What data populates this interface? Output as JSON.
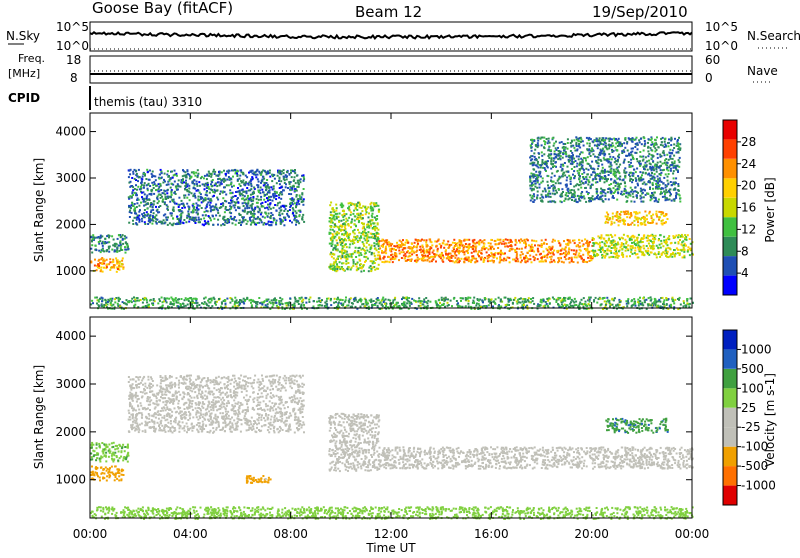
{
  "header": {
    "station": "Goose Bay (fitACF)",
    "beam": "Beam 12",
    "date": "19/Sep/2010"
  },
  "top_panels": {
    "nsky_label": "N.Sky",
    "nsearch_label": "N.Search",
    "freq_label_line1": "Freq.",
    "freq_label_line2": "[MHz]",
    "nave_label": "Nave",
    "cpid_label": "CPID",
    "cpid_text": "themis (tau) 3310",
    "noise_ticks_left": [
      "10^5",
      "10^0"
    ],
    "noise_ticks_right": [
      "10^5",
      "10^0"
    ],
    "freq_ticks": [
      "18",
      "8"
    ],
    "nave_ticks": [
      "60",
      "0"
    ]
  },
  "colors": {
    "power_scale": [
      "#0000ff",
      "#1f4fb4",
      "#2e8b57",
      "#40c040",
      "#c8d800",
      "#ffd000",
      "#ff9000",
      "#ff4000",
      "#e80000"
    ],
    "velocity_scale": [
      "#e00000",
      "#ff7000",
      "#f0a000",
      "#c0c0b8",
      "#c0c0b8",
      "#80d040",
      "#40a040",
      "#2060c0",
      "#0020c0"
    ],
    "ground_scatter": "#c0c0b8"
  },
  "chart_data": [
    {
      "type": "heatmap",
      "parameter": "Power",
      "ylabel": "Slant Range [km]",
      "xlabel": "",
      "ylim": [
        200,
        4400
      ],
      "y_ticks": [
        "1000",
        "2000",
        "3000",
        "4000"
      ],
      "colorbar": {
        "label": "Power [dB]",
        "ticks": [
          "4",
          "8",
          "12",
          "16",
          "20",
          "24",
          "28"
        ]
      },
      "regions": [
        {
          "t_start": 0.0,
          "t_end": 1.3,
          "range_min": 1000,
          "range_max": 1300,
          "value": 22
        },
        {
          "t_start": 0.0,
          "t_end": 1.5,
          "range_min": 1400,
          "range_max": 1800,
          "value": 8
        },
        {
          "t_start": 1.5,
          "t_end": 8.5,
          "range_min": 2000,
          "range_max": 3200,
          "value": 6
        },
        {
          "t_start": 9.5,
          "t_end": 11.5,
          "range_min": 1000,
          "range_max": 2500,
          "value": 14
        },
        {
          "t_start": 11.5,
          "t_end": 20.0,
          "range_min": 1200,
          "range_max": 1700,
          "value": 24
        },
        {
          "t_start": 20.0,
          "t_end": 24.0,
          "range_min": 1300,
          "range_max": 1800,
          "value": 16
        },
        {
          "t_start": 20.5,
          "t_end": 23.0,
          "range_min": 2000,
          "range_max": 2300,
          "value": 20
        },
        {
          "t_start": 17.5,
          "t_end": 23.5,
          "range_min": 2500,
          "range_max": 3900,
          "value": 7
        },
        {
          "t_start": 0.0,
          "t_end": 24.0,
          "range_min": 200,
          "range_max": 450,
          "value": 10
        }
      ]
    },
    {
      "type": "heatmap",
      "parameter": "Velocity",
      "ylabel": "Slant Range [km]",
      "xlabel": "Time UT",
      "ylim": [
        200,
        4400
      ],
      "y_ticks": [
        "1000",
        "2000",
        "3000",
        "4000"
      ],
      "x_ticks": [
        "00:00",
        "04:00",
        "08:00",
        "12:00",
        "16:00",
        "20:00",
        "00:00"
      ],
      "colorbar": {
        "label": "Velocity [m s-1]",
        "ticks": [
          "1000",
          "500",
          "100",
          "25",
          "-25",
          "-100",
          "-500",
          "-1000"
        ]
      },
      "regions": [
        {
          "t_start": 0.0,
          "t_end": 1.3,
          "range_min": 1000,
          "range_max": 1300,
          "value": -300,
          "ground": false
        },
        {
          "t_start": 0.0,
          "t_end": 1.5,
          "range_min": 1400,
          "range_max": 1800,
          "value": 80,
          "ground": false
        },
        {
          "t_start": 1.5,
          "t_end": 8.5,
          "range_min": 2000,
          "range_max": 3200,
          "value": 0,
          "ground": true
        },
        {
          "t_start": 6.2,
          "t_end": 7.2,
          "range_min": 950,
          "range_max": 1100,
          "value": -150,
          "ground": false
        },
        {
          "t_start": 9.5,
          "t_end": 11.5,
          "range_min": 1200,
          "range_max": 2400,
          "value": 0,
          "ground": true
        },
        {
          "t_start": 11.5,
          "t_end": 24.0,
          "range_min": 1250,
          "range_max": 1700,
          "value": 0,
          "ground": true
        },
        {
          "t_start": 20.5,
          "t_end": 23.0,
          "range_min": 2000,
          "range_max": 2300,
          "value": 400,
          "ground": false
        },
        {
          "t_start": 0.0,
          "t_end": 24.0,
          "range_min": 200,
          "range_max": 450,
          "value": 60,
          "ground": false
        }
      ]
    }
  ]
}
